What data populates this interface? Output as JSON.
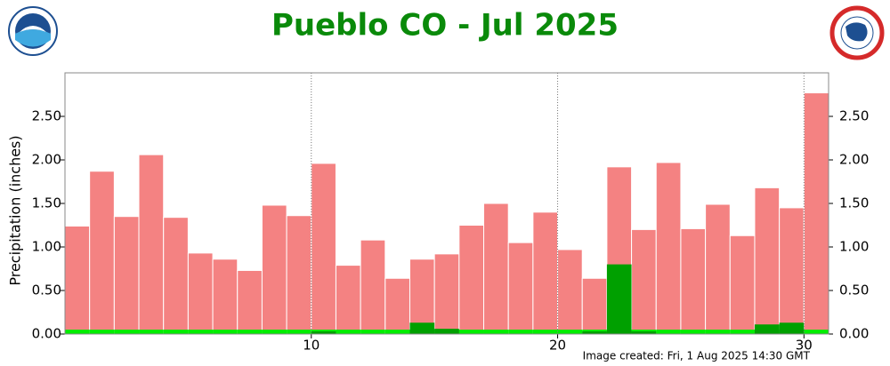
{
  "chart_data": {
    "type": "bar",
    "title": "Pueblo CO - Jul 2025",
    "y_label": "Precipitation (inches)",
    "annotation": "Image created: Fri, 1 Aug 2025 14:30 GMT",
    "x": [
      1,
      2,
      3,
      4,
      5,
      6,
      7,
      8,
      9,
      10,
      11,
      12,
      13,
      14,
      15,
      16,
      17,
      18,
      19,
      20,
      21,
      22,
      23,
      24,
      25,
      26,
      27,
      28,
      29,
      30,
      31
    ],
    "xlim": [
      0,
      31
    ],
    "xticks": [
      10,
      20,
      30
    ],
    "ylim": [
      0,
      3
    ],
    "yticks": [
      {
        "value": 0,
        "label": "0.00"
      },
      {
        "value": 0.5,
        "label": "0.50"
      },
      {
        "value": 1,
        "label": "1.00"
      },
      {
        "value": 1.5,
        "label": "1.50"
      },
      {
        "value": 2,
        "label": "2.00"
      },
      {
        "value": 2.5,
        "label": "2.50"
      }
    ],
    "grid": "x",
    "series": [
      {
        "color": "#f48282",
        "values": [
          1.24,
          1.87,
          1.35,
          2.06,
          1.34,
          0.93,
          0.86,
          0.73,
          1.48,
          1.36,
          1.96,
          0.79,
          1.08,
          0.64,
          0.86,
          0.92,
          1.25,
          1.5,
          1.05,
          1.4,
          0.97,
          0.64,
          1.92,
          1.2,
          1.97,
          1.21,
          1.49,
          1.13,
          1.68,
          1.45,
          2.77
        ]
      },
      {
        "color": "#00ee00",
        "values": [
          0.05,
          0.05,
          0.05,
          0.05,
          0.05,
          0.05,
          0.05,
          0.05,
          0.05,
          0.05,
          0.05,
          0.05,
          0.05,
          0.05,
          0.05,
          0.05,
          0.05,
          0.05,
          0.05,
          0.05,
          0.05,
          0.05,
          0.05,
          0.05,
          0.05,
          0.05,
          0.05,
          0.05,
          0.05,
          0.05,
          0.05
        ]
      },
      {
        "color": "#00a000",
        "values": [
          0,
          0,
          0,
          0,
          0,
          0,
          0,
          0,
          0,
          0,
          0.03,
          0,
          0,
          0,
          0.13,
          0.06,
          0,
          0,
          0,
          0,
          0,
          0.03,
          0.8,
          0.03,
          0,
          0,
          0,
          0,
          0.11,
          0.13,
          0
        ]
      }
    ]
  }
}
